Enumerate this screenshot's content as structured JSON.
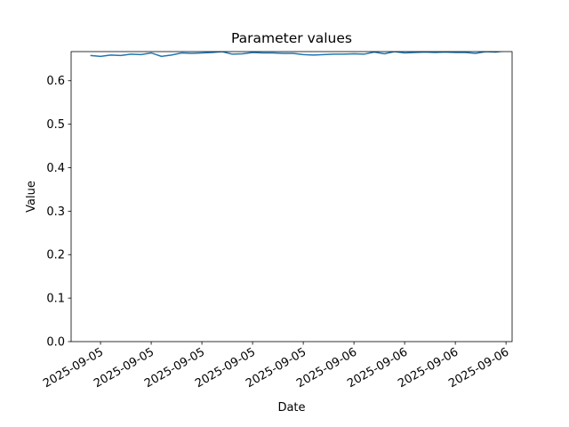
{
  "chart_data": {
    "type": "line",
    "title": "Parameter values",
    "x_label": "Date",
    "y_label": "Value",
    "x": [
      -0.2,
      0,
      0.2,
      0.4,
      0.6,
      0.8,
      1.0,
      1.2,
      1.4,
      1.6,
      1.8,
      2.0,
      2.2,
      2.4,
      2.6,
      2.8,
      3.0,
      3.2,
      3.4,
      3.6,
      3.8,
      4.0,
      4.2,
      4.4,
      4.6,
      4.8,
      5.0,
      5.2,
      5.4,
      5.6,
      5.8,
      6.0,
      6.2,
      6.4,
      6.6,
      6.8,
      7.0,
      7.2,
      7.4,
      7.6,
      7.8,
      8.0
    ],
    "values": [
      0.658,
      0.656,
      0.659,
      0.658,
      0.661,
      0.66,
      0.664,
      0.656,
      0.659,
      0.664,
      0.663,
      0.664,
      0.665,
      0.667,
      0.661,
      0.662,
      0.665,
      0.664,
      0.664,
      0.663,
      0.663,
      0.66,
      0.659,
      0.66,
      0.661,
      0.661,
      0.662,
      0.661,
      0.666,
      0.662,
      0.667,
      0.664,
      0.665,
      0.666,
      0.665,
      0.666,
      0.665,
      0.665,
      0.663,
      0.667,
      0.666,
      0.669
    ],
    "color": "#1f77b4",
    "xlim": [
      -0.58,
      8.12
    ],
    "xticks": [
      {
        "value": 0,
        "label": "2025-09-05"
      },
      {
        "value": 1,
        "label": "2025-09-05"
      },
      {
        "value": 2,
        "label": "2025-09-05"
      },
      {
        "value": 3,
        "label": "2025-09-05"
      },
      {
        "value": 4,
        "label": "2025-09-05"
      },
      {
        "value": 5,
        "label": "2025-09-06"
      },
      {
        "value": 6,
        "label": "2025-09-06"
      },
      {
        "value": 7,
        "label": "2025-09-06"
      },
      {
        "value": 8,
        "label": "2025-09-06"
      }
    ],
    "ylim": [
      0,
      0.667
    ],
    "yticks": [
      {
        "value": 0,
        "label": "0.0"
      },
      0.1,
      0.2,
      0.3,
      0.4,
      0.5,
      0.6
    ]
  }
}
